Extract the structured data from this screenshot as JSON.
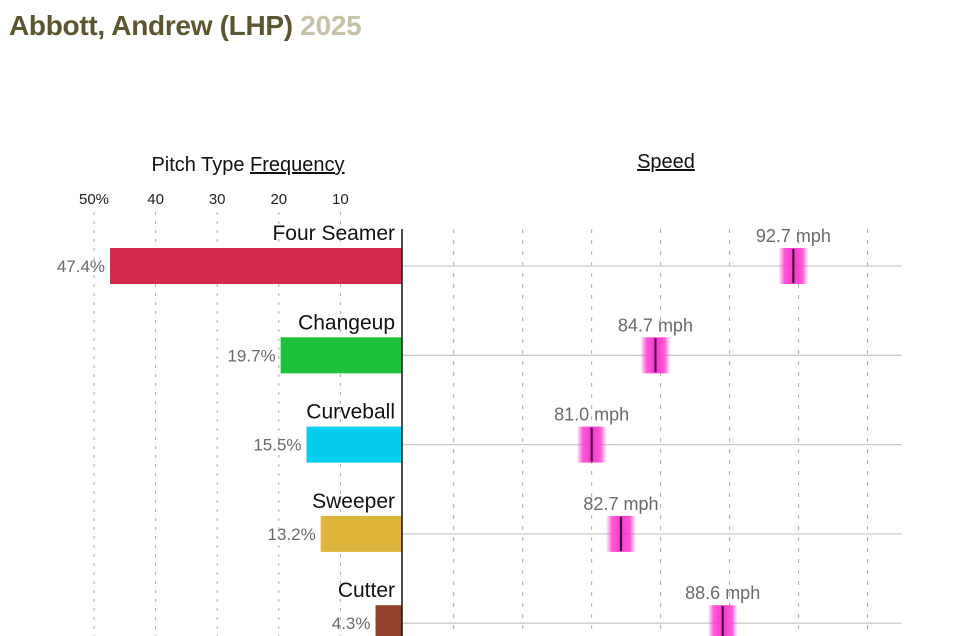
{
  "header": {
    "name": "Abbott, Andrew (LHP)",
    "year": "2025"
  },
  "chart_data": {
    "type": "bar",
    "freq_heading_prefix": "Pitch Type ",
    "freq_heading_link": "Frequency",
    "speed_heading": "Speed",
    "freq_axis_ticks": [
      {
        "value": 50,
        "label": "50%"
      },
      {
        "value": 40,
        "label": "40"
      },
      {
        "value": 30,
        "label": "30"
      },
      {
        "value": 20,
        "label": "20"
      },
      {
        "value": 10,
        "label": "10"
      }
    ],
    "freq_xlim": [
      0,
      50
    ],
    "speed_xlim": [
      70,
      99
    ],
    "speed_gridlines": [
      73,
      77,
      81,
      85,
      89,
      93,
      97
    ],
    "marker_color": "#ff33cc",
    "pitches": [
      {
        "name": "Four Seamer",
        "frequency": 47.4,
        "freq_label": "47.4%",
        "speed": 92.7,
        "speed_label": "92.7 mph",
        "color": "#d42a4b"
      },
      {
        "name": "Changeup",
        "frequency": 19.7,
        "freq_label": "19.7%",
        "speed": 84.7,
        "speed_label": "84.7 mph",
        "color": "#1cc23a"
      },
      {
        "name": "Curveball",
        "frequency": 15.5,
        "freq_label": "15.5%",
        "speed": 81.0,
        "speed_label": "81.0 mph",
        "color": "#05cdee"
      },
      {
        "name": "Sweeper",
        "frequency": 13.2,
        "freq_label": "13.2%",
        "speed": 82.7,
        "speed_label": "82.7 mph",
        "color": "#dcb53a"
      },
      {
        "name": "Cutter",
        "frequency": 4.3,
        "freq_label": "4.3%",
        "speed": 88.6,
        "speed_label": "88.6 mph",
        "color": "#93412c"
      }
    ]
  }
}
